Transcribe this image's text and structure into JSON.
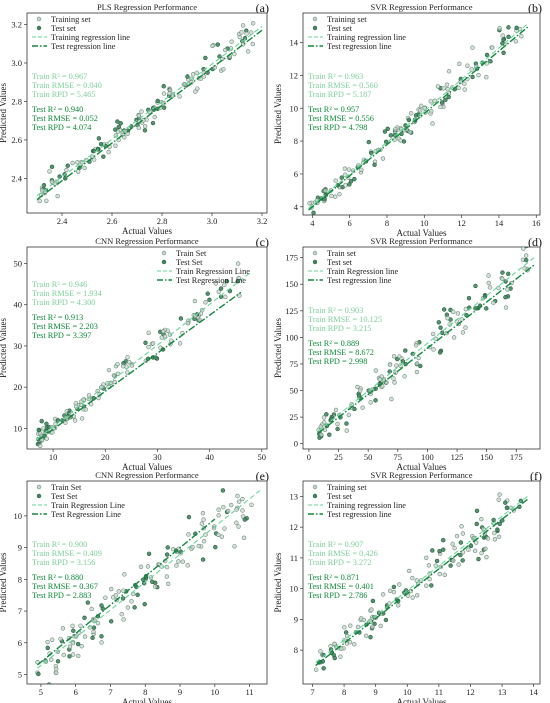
{
  "colors": {
    "train_line": "#66d49a",
    "test_line": "#0e8a3a",
    "train_text": "#7ecf9c",
    "test_text": "#0e8a3a",
    "train_marker_fill": "#c9d8cf",
    "train_marker_edge": "#6b8a78",
    "test_marker_fill": "#3f8a5f",
    "test_marker_edge": "#2a5a3e"
  },
  "chart_data": [
    {
      "type": "scatter",
      "panel_label": "(a)",
      "title": "PLS Regression Performance",
      "xlabel": "Actual Values",
      "ylabel": "Predicted Values",
      "xlim": [
        2.26,
        3.22
      ],
      "ylim": [
        2.22,
        3.26
      ],
      "xticks": [
        2.4,
        2.6,
        2.8,
        3.0,
        3.2
      ],
      "yticks": [
        2.4,
        2.6,
        2.8,
        3.0,
        3.2
      ],
      "xtick_labels": [
        "2.4",
        "2.6",
        "2.8",
        "3.0",
        "3.2"
      ],
      "ytick_labels": [
        "2.4",
        "2.6",
        "2.8",
        "3.0",
        "3.2"
      ],
      "legend": {
        "position": "top-left",
        "entries": [
          "Training set",
          "Test set",
          "Training regression line",
          "Test regression line"
        ]
      },
      "train_stats": [
        "Train R² = 0.967",
        "Train RMSE = 0.040",
        "Train RPD = 5.465"
      ],
      "test_stats": [
        "Test R² = 0.940",
        "Test RMSE = 0.052",
        "Test RPD = 4.074"
      ],
      "train_fit": {
        "x": [
          2.3,
          3.2
        ],
        "y": [
          2.31,
          3.19
        ]
      },
      "test_fit": {
        "x": [
          2.3,
          3.2
        ],
        "y": [
          2.29,
          3.17
        ]
      },
      "scatter": {
        "n": 150,
        "spread": 0.04,
        "seed": 11
      }
    },
    {
      "type": "scatter",
      "panel_label": "(b)",
      "title": "SVR Regression Performance",
      "xlabel": "Actual Values",
      "ylabel": "Predicted Values",
      "xlim": [
        3.5,
        16.2
      ],
      "ylim": [
        3.5,
        15.8
      ],
      "xticks": [
        4,
        6,
        8,
        10,
        12,
        14,
        16
      ],
      "yticks": [
        4,
        6,
        8,
        10,
        12,
        14
      ],
      "xtick_labels": [
        "4",
        "6",
        "8",
        "10",
        "12",
        "14",
        "16"
      ],
      "ytick_labels": [
        "4",
        "6",
        "8",
        "10",
        "12",
        "14"
      ],
      "legend": {
        "position": "top-left",
        "entries": [
          "Training set",
          "Test set",
          "Training regression line",
          "Test regression line"
        ]
      },
      "train_stats": [
        "Train R² = 0.963",
        "Train RMSE = 0.560",
        "Train RPD = 5.187"
      ],
      "test_stats": [
        "Test R² = 0.957",
        "Test RMSE = 0.556",
        "Test RPD = 4.798"
      ],
      "train_fit": {
        "x": [
          3.8,
          15.6
        ],
        "y": [
          3.9,
          15.2
        ]
      },
      "test_fit": {
        "x": [
          3.8,
          15.6
        ],
        "y": [
          3.8,
          15.0
        ]
      },
      "scatter": {
        "n": 150,
        "spread": 0.5,
        "seed": 23
      }
    },
    {
      "type": "scatter",
      "panel_label": "(c)",
      "title": "CNN Regression Performance",
      "xlabel": "Actual Values",
      "ylabel": "Predicted Values",
      "xlim": [
        5,
        51
      ],
      "ylim": [
        5,
        54
      ],
      "xticks": [
        10,
        20,
        30,
        40,
        50
      ],
      "yticks": [
        10,
        20,
        30,
        40,
        50
      ],
      "xtick_labels": [
        "10",
        "20",
        "30",
        "40",
        "50"
      ],
      "ytick_labels": [
        "10",
        "20",
        "30",
        "40",
        "50"
      ],
      "legend": {
        "position": "top-right",
        "entries": [
          "Train Set",
          "Test Set",
          "Train Regression Line",
          "Test Regression Line"
        ]
      },
      "train_stats": [
        "Train R² = 0.946",
        "Train RMSE = 1.934",
        "Train RPD = 4.300"
      ],
      "test_stats": [
        "Test R² = 0.913",
        "Test RMSE = 2.203",
        "Test RPD = 3.397"
      ],
      "train_fit": {
        "x": [
          7,
          48
        ],
        "y": [
          7.5,
          48
        ]
      },
      "test_fit": {
        "x": [
          7,
          46
        ],
        "y": [
          7.0,
          43
        ]
      },
      "scatter": {
        "n": 150,
        "spread": 1.8,
        "seed": 37
      }
    },
    {
      "type": "scatter",
      "panel_label": "(d)",
      "title": "SVR Regression Performance",
      "xlabel": "Actual Values",
      "ylabel": "Predicted Values",
      "xlim": [
        -5,
        195
      ],
      "ylim": [
        -5,
        185
      ],
      "xticks": [
        0,
        25,
        50,
        75,
        100,
        125,
        150,
        175
      ],
      "yticks": [
        0,
        25,
        50,
        75,
        100,
        125,
        150,
        175
      ],
      "xtick_labels": [
        "0",
        "25",
        "50",
        "75",
        "100",
        "125",
        "150",
        "175"
      ],
      "ytick_labels": [
        "0",
        "25",
        "50",
        "75",
        "100",
        "125",
        "150",
        "175"
      ],
      "legend": {
        "position": "top-left",
        "entries": [
          "Train set",
          "Test set",
          "Train Regression line",
          "Test regression line"
        ]
      },
      "train_stats": [
        "Train R² = 0.903",
        "Train RMSE = 10.125",
        "Train RPD = 3.215"
      ],
      "test_stats": [
        "Test R² = 0.889",
        "Test RMSE = 8.672",
        "Test RPD = 2.998"
      ],
      "train_fit": {
        "x": [
          8,
          190
        ],
        "y": [
          12,
          175
        ]
      },
      "test_fit": {
        "x": [
          8,
          190
        ],
        "y": [
          10,
          168
        ]
      },
      "scatter": {
        "n": 150,
        "spread": 9,
        "seed": 51
      }
    },
    {
      "type": "scatter",
      "panel_label": "(e)",
      "title": "CNN Regression Performance",
      "xlabel": "Actual Values",
      "ylabel": "Predicted Values",
      "xlim": [
        4.6,
        11.5
      ],
      "ylim": [
        4.7,
        11.1
      ],
      "xticks": [
        5,
        6,
        7,
        8,
        9,
        10,
        11
      ],
      "yticks": [
        5,
        6,
        7,
        8,
        9,
        10
      ],
      "xtick_labels": [
        "5",
        "6",
        "7",
        "8",
        "9",
        "10",
        "11"
      ],
      "ytick_labels": [
        "5",
        "6",
        "7",
        "8",
        "9",
        "10"
      ],
      "legend": {
        "position": "top-left",
        "entries": [
          "Train Set",
          "Test Set",
          "Train Regression Line",
          "Test Regression Line"
        ]
      },
      "train_stats": [
        "Train R² = 0.900",
        "Train RMSE = 0.409",
        "Train RPD = 3.156"
      ],
      "test_stats": [
        "Test R² = 0.880",
        "Test RMSE = 0.367",
        "Test RPD = 2.883"
      ],
      "train_fit": {
        "x": [
          4.9,
          11.3
        ],
        "y": [
          5.2,
          10.8
        ]
      },
      "test_fit": {
        "x": [
          4.9,
          10.0
        ],
        "y": [
          5.3,
          9.9
        ]
      },
      "scatter": {
        "n": 150,
        "spread": 0.4,
        "seed": 67
      }
    },
    {
      "type": "scatter",
      "panel_label": "(f)",
      "title": "SVR Regression Performance",
      "xlabel": "Actual Values",
      "ylabel": "Predicted Values",
      "xlim": [
        6.7,
        14.2
      ],
      "ylim": [
        6.9,
        13.5
      ],
      "xticks": [
        7,
        8,
        9,
        10,
        11,
        12,
        13,
        14
      ],
      "yticks": [
        8,
        9,
        10,
        11,
        12,
        13
      ],
      "xtick_labels": [
        "7",
        "8",
        "9",
        "10",
        "11",
        "12",
        "13",
        "14"
      ],
      "ytick_labels": [
        "8",
        "9",
        "10",
        "11",
        "12",
        "13"
      ],
      "legend": {
        "position": "top-left",
        "entries": [
          "Training set",
          "Test set",
          "Training regression line",
          "Test regression line"
        ]
      },
      "train_stats": [
        "Train R² = 0.907",
        "Train RMSE = 0.426",
        "Train RPD = 3.272"
      ],
      "test_stats": [
        "Test R² = 0.871",
        "Test RMSE = 0.401",
        "Test RPD = 2.786"
      ],
      "train_fit": {
        "x": [
          7.1,
          13.8
        ],
        "y": [
          7.6,
          13.0
        ]
      },
      "test_fit": {
        "x": [
          7.1,
          13.8
        ],
        "y": [
          7.5,
          12.9
        ]
      },
      "scatter": {
        "n": 150,
        "spread": 0.35,
        "seed": 79
      }
    }
  ]
}
